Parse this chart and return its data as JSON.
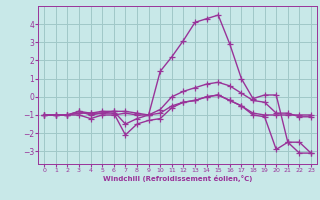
{
  "xlabel": "Windchill (Refroidissement éolien,°C)",
  "xlim": [
    -0.5,
    23.5
  ],
  "ylim": [
    -3.7,
    5.0
  ],
  "yticks": [
    -3,
    -2,
    -1,
    0,
    1,
    2,
    3,
    4
  ],
  "xticks": [
    0,
    1,
    2,
    3,
    4,
    5,
    6,
    7,
    8,
    9,
    10,
    11,
    12,
    13,
    14,
    15,
    16,
    17,
    18,
    19,
    20,
    21,
    22,
    23
  ],
  "background_color": "#c8e8e8",
  "grid_color": "#a0c8c8",
  "line_color": "#993399",
  "line_width": 1.0,
  "marker": "+",
  "markersize": 4,
  "x_vals": [
    0,
    1,
    2,
    3,
    4,
    5,
    6,
    7,
    8,
    9,
    10,
    11,
    12,
    13,
    14,
    15,
    16,
    17,
    18,
    19,
    20,
    21,
    22,
    23
  ],
  "lines": [
    [
      -1.0,
      -1.0,
      -1.0,
      -0.8,
      -1.0,
      -0.9,
      -0.9,
      -2.1,
      -1.5,
      -1.3,
      -1.2,
      -0.6,
      -0.3,
      -0.2,
      0.0,
      0.1,
      -0.2,
      -0.5,
      -1.0,
      -1.1,
      -2.9,
      -2.5,
      -3.1,
      -3.1
    ],
    [
      -1.0,
      -1.0,
      -1.0,
      -0.9,
      -0.9,
      -0.8,
      -0.8,
      -1.5,
      -1.2,
      -1.0,
      -0.7,
      0.0,
      0.3,
      0.5,
      0.7,
      0.8,
      0.6,
      0.2,
      -0.2,
      -0.3,
      -0.9,
      -0.9,
      -1.1,
      -1.1
    ],
    [
      -1.0,
      -1.0,
      -1.0,
      -1.0,
      -1.2,
      -1.0,
      -1.0,
      -0.9,
      -1.0,
      -1.0,
      -0.9,
      -0.5,
      -0.3,
      -0.2,
      0.0,
      0.1,
      -0.2,
      -0.5,
      -0.9,
      -1.0,
      -1.0,
      -1.0,
      -1.0,
      -1.0
    ],
    [
      -1.0,
      -1.0,
      -1.0,
      -0.8,
      -0.9,
      -0.9,
      -0.8,
      -0.8,
      -0.9,
      -1.0,
      1.4,
      2.2,
      3.1,
      4.1,
      4.3,
      4.5,
      2.9,
      1.0,
      -0.1,
      0.1,
      0.1,
      -2.5,
      -2.5,
      -3.1
    ]
  ]
}
